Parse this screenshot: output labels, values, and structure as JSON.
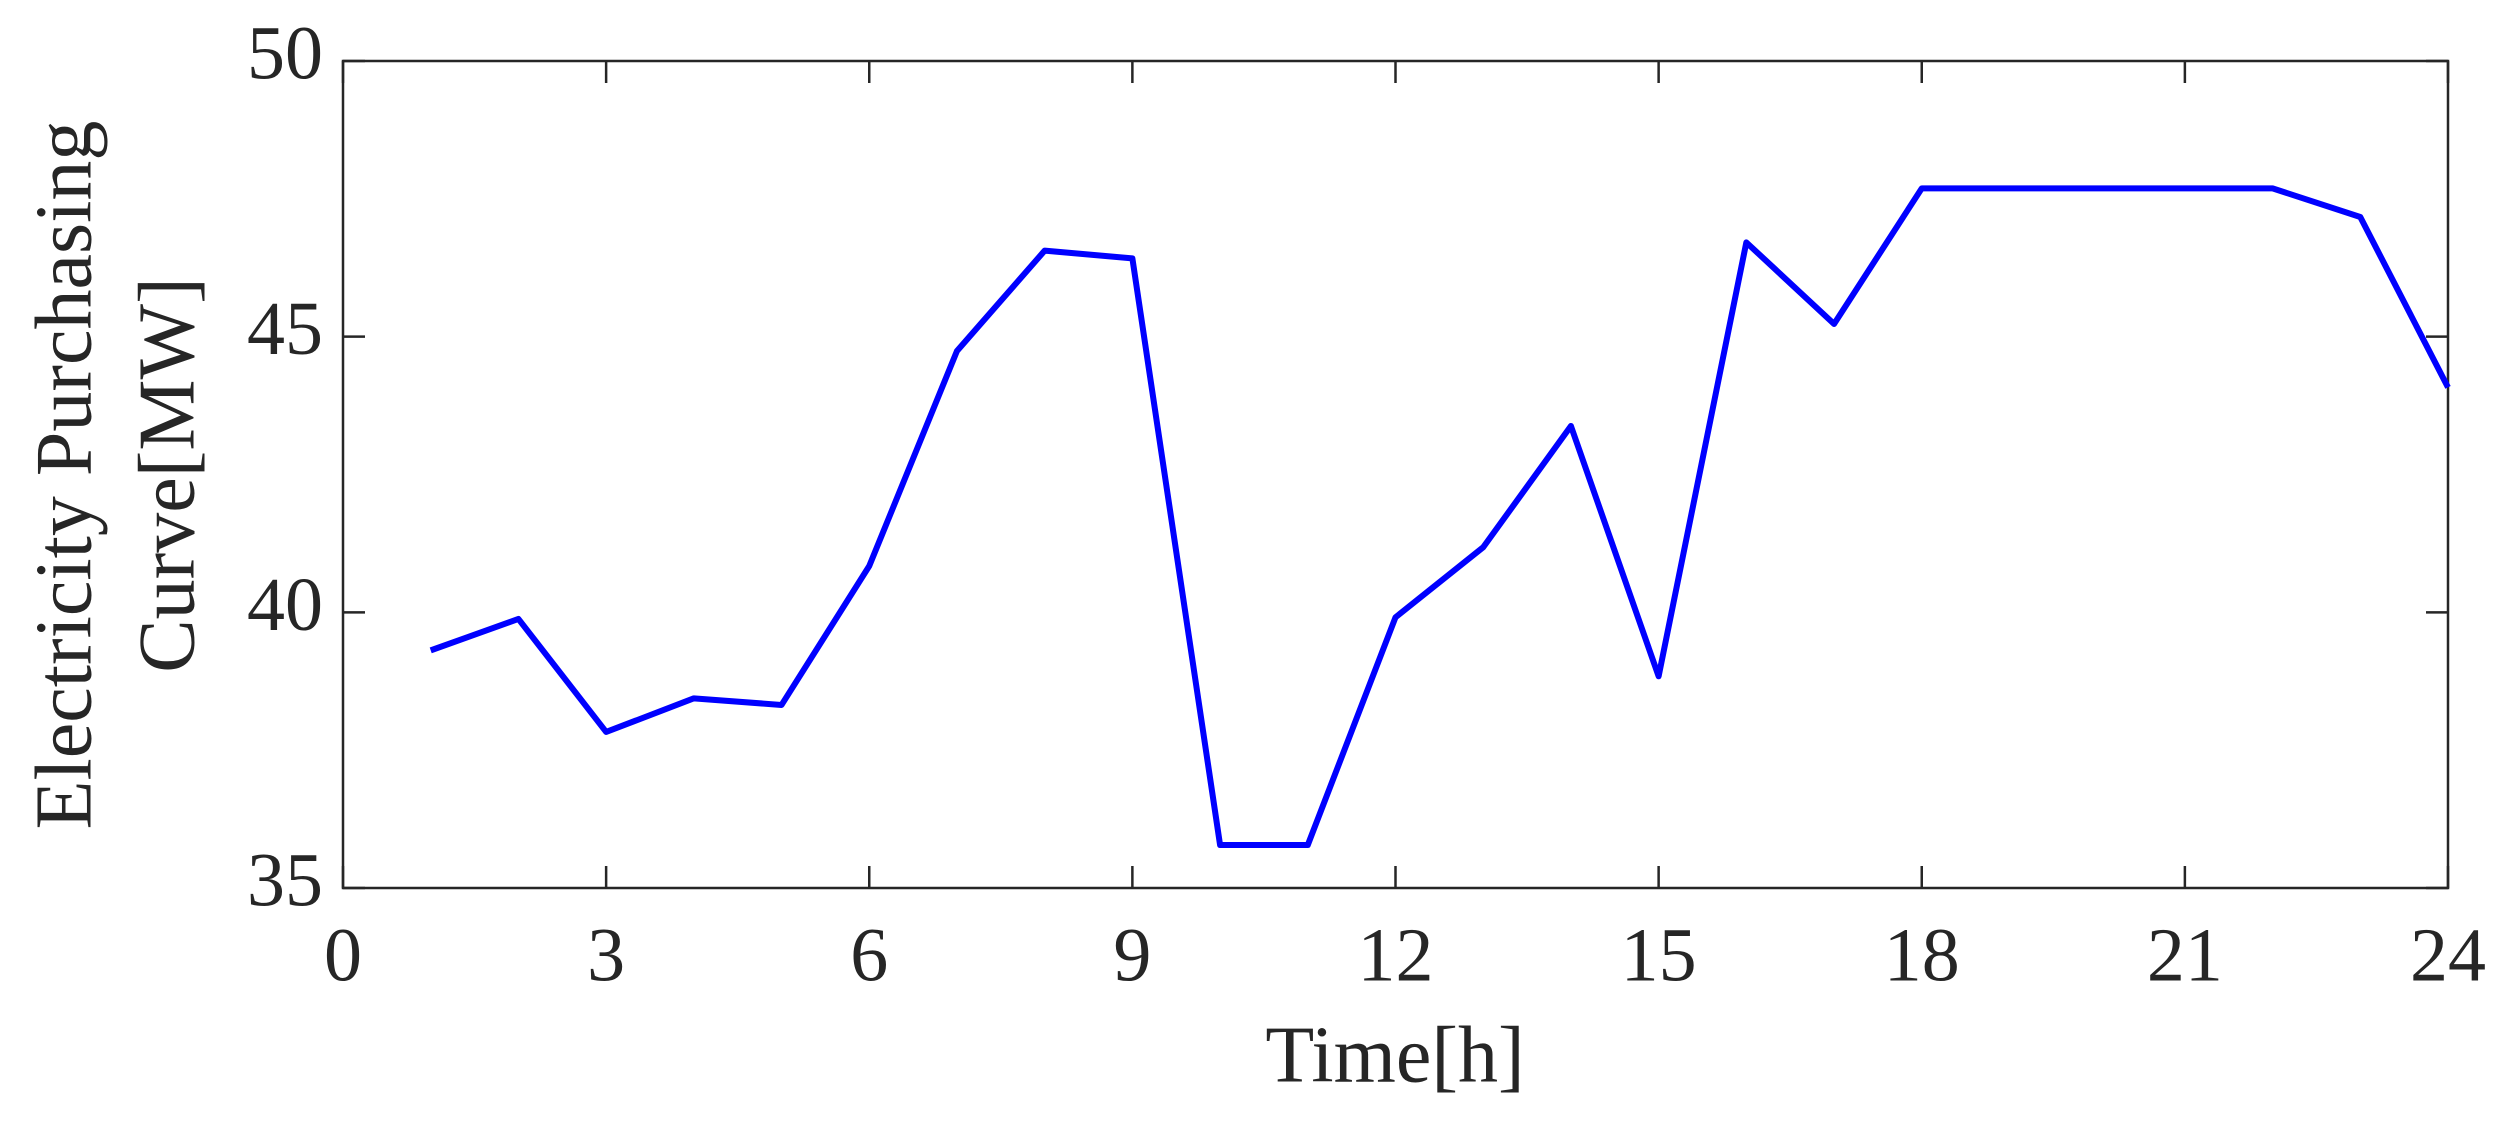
{
  "chart_data": {
    "type": "line",
    "xlabel": "Time[h]",
    "ylabel": [
      "Electricity Purchasing",
      "Curve[MW]"
    ],
    "x": [
      1,
      2,
      3,
      4,
      5,
      6,
      7,
      8,
      9,
      10,
      11,
      12,
      13,
      14,
      15,
      16,
      17,
      18,
      19,
      20,
      21,
      22,
      23,
      24
    ],
    "series": [
      {
        "name": "Electricity Purchasing Curve",
        "color": "#0000ff",
        "values": [
          39.31,
          39.88,
          37.83,
          38.44,
          38.32,
          40.84,
          44.74,
          46.56,
          46.42,
          35.78,
          35.78,
          39.91,
          41.18,
          43.38,
          38.84,
          46.71,
          45.23,
          47.69,
          47.69,
          47.69,
          47.69,
          47.69,
          47.17,
          44.08
        ]
      }
    ],
    "xlim": [
      0,
      24
    ],
    "xticks": [
      0,
      3,
      6,
      9,
      12,
      15,
      18,
      21,
      24
    ],
    "ylim": [
      35,
      50
    ],
    "yticks": [
      35,
      40,
      45,
      50
    ],
    "grid": false
  }
}
